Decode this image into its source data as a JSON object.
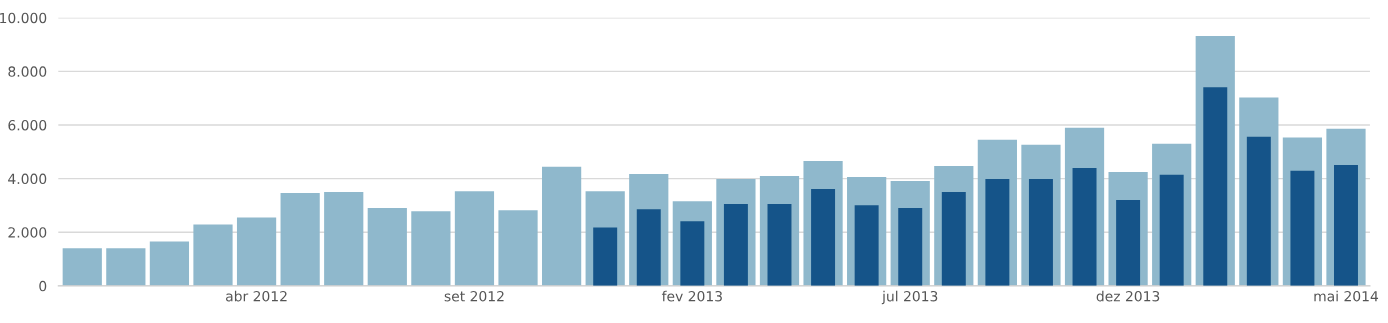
{
  "chart_data": {
    "type": "bar",
    "categories": [
      null,
      null,
      null,
      null,
      "abr 2012",
      null,
      null,
      null,
      null,
      "set 2012",
      null,
      null,
      null,
      null,
      "fev 2013",
      null,
      null,
      null,
      null,
      "jul 2013",
      null,
      null,
      null,
      null,
      "dez 2013",
      null,
      null,
      null,
      null,
      "mai 2014"
    ],
    "series": [
      {
        "color": "#8fb8cc",
        "values": [
          1400,
          1400,
          1650,
          2290,
          2550,
          3460,
          3500,
          2900,
          2780,
          3530,
          2820,
          4440,
          3530,
          4170,
          3160,
          3990,
          4100,
          4660,
          4060,
          3910,
          4470,
          5450,
          5260,
          5900,
          4250,
          5300,
          9320,
          7030,
          5530,
          5860
        ]
      },
      {
        "color": "#155489",
        "values": [
          null,
          null,
          null,
          null,
          null,
          null,
          null,
          null,
          null,
          null,
          null,
          null,
          2180,
          2860,
          2410,
          3050,
          3050,
          3610,
          3010,
          2900,
          3500,
          3990,
          3990,
          4400,
          3200,
          4140,
          7410,
          5560,
          4290,
          4510
        ]
      }
    ],
    "ylim": [
      0,
      10000
    ],
    "yticks": [
      0,
      {
        "value": 2000,
        "label": "2.000"
      },
      {
        "value": 4000,
        "label": "4.000"
      },
      {
        "value": 6000,
        "label": "6.000"
      },
      {
        "value": 8000,
        "label": "8.000"
      },
      {
        "value": 10000,
        "label": "10.000"
      }
    ],
    "grid": "y"
  }
}
